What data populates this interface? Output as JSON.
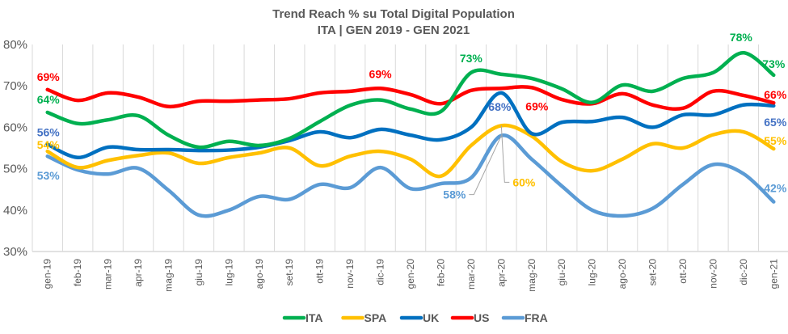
{
  "chart_data": {
    "type": "line",
    "title": "Trend Reach % su Total Digital Population",
    "subtitle": "ITA | GEN 2019 - GEN 2021",
    "xlabel": "",
    "ylabel": "",
    "ylim": [
      30,
      80
    ],
    "yticks": [
      30,
      40,
      50,
      60,
      70,
      80
    ],
    "ytick_labels": [
      "30%",
      "40%",
      "50%",
      "60%",
      "70%",
      "80%"
    ],
    "grid": "vertical",
    "smooth": true,
    "legend_position": "bottom",
    "categories": [
      "gen-19",
      "feb-19",
      "mar-19",
      "apr-19",
      "mag-19",
      "giu-19",
      "lug-19",
      "ago-19",
      "set-19",
      "ott-19",
      "nov-19",
      "dic-19",
      "gen-20",
      "feb-20",
      "mar-20",
      "apr-20",
      "mag-20",
      "giu-20",
      "lug-20",
      "ago-20",
      "set-20",
      "ott-20",
      "nov-20",
      "dic-20",
      "gen-21"
    ],
    "series": [
      {
        "name": "ITA",
        "color": "#00B050",
        "values": [
          63.6,
          60.9,
          61.8,
          62.8,
          58.1,
          55.2,
          56.6,
          55.6,
          57.3,
          61.4,
          65.3,
          66.6,
          64.4,
          63.8,
          73.2,
          72.8,
          71.8,
          69.3,
          66.0,
          70.2,
          68.7,
          71.8,
          73.2,
          78.0,
          72.6
        ]
      },
      {
        "name": "SPA",
        "color": "#FFC000",
        "values": [
          54.2,
          50.3,
          52.0,
          53.2,
          53.8,
          51.3,
          52.7,
          53.8,
          55.0,
          50.7,
          53.0,
          54.2,
          52.3,
          48.2,
          55.6,
          60.4,
          57.9,
          51.7,
          49.5,
          52.3,
          56.0,
          55.0,
          58.2,
          58.9,
          54.8
        ]
      },
      {
        "name": "UK",
        "color": "#0070C0",
        "values": [
          55.9,
          52.7,
          55.2,
          54.6,
          54.6,
          54.4,
          54.5,
          55.2,
          56.8,
          58.9,
          57.5,
          59.5,
          58.1,
          57.0,
          60.0,
          68.3,
          58.5,
          61.2,
          61.4,
          62.4,
          60.0,
          63.0,
          63.0,
          65.4,
          65.2
        ]
      },
      {
        "name": "US",
        "color": "#FF0000",
        "values": [
          69.1,
          66.5,
          68.3,
          67.3,
          65.0,
          66.3,
          66.3,
          66.6,
          66.9,
          68.3,
          68.7,
          69.4,
          67.9,
          65.7,
          68.9,
          69.4,
          69.6,
          66.7,
          65.7,
          68.1,
          65.4,
          64.6,
          68.7,
          67.7,
          65.9
        ]
      },
      {
        "name": "FRA",
        "color": "#5B9BD5",
        "values": [
          53.0,
          49.7,
          48.7,
          50.1,
          44.8,
          38.8,
          40.0,
          43.3,
          42.6,
          46.2,
          45.4,
          50.3,
          45.2,
          46.4,
          47.8,
          58.0,
          52.3,
          45.8,
          40.0,
          38.6,
          40.4,
          46.2,
          51.0,
          48.8,
          42.0
        ]
      }
    ],
    "annotations": [
      {
        "series": "US",
        "category": "gen-19",
        "text": "69%",
        "color": "#FF0000"
      },
      {
        "series": "ITA",
        "category": "gen-19",
        "text": "64%",
        "color": "#00B050"
      },
      {
        "series": "UK",
        "category": "gen-19",
        "text": "56%",
        "color": "#4472C4"
      },
      {
        "series": "SPA",
        "category": "gen-19",
        "text": "54%",
        "color": "#FFC000"
      },
      {
        "series": "FRA",
        "category": "gen-19",
        "text": "53%",
        "color": "#5B9BD5"
      },
      {
        "series": "US",
        "category": "dic-19",
        "text": "69%",
        "color": "#FF0000"
      },
      {
        "series": "ITA",
        "category": "mar-20",
        "text": "73%",
        "color": "#00B050"
      },
      {
        "series": "UK",
        "category": "apr-20",
        "text": "68%",
        "color": "#4472C4"
      },
      {
        "series": "US",
        "category": "apr-20",
        "text": "69%",
        "color": "#FF0000"
      },
      {
        "series": "FRA",
        "category": "apr-20",
        "text": "58%",
        "color": "#5B9BD5",
        "callout": true
      },
      {
        "series": "SPA",
        "category": "apr-20",
        "text": "60%",
        "color": "#FFC000",
        "callout": true
      },
      {
        "series": "ITA",
        "category": "dic-20",
        "text": "78%",
        "color": "#00B050"
      },
      {
        "series": "ITA",
        "category": "gen-21",
        "text": "73%",
        "color": "#00B050"
      },
      {
        "series": "US",
        "category": "gen-21",
        "text": "66%",
        "color": "#FF0000"
      },
      {
        "series": "UK",
        "category": "gen-21",
        "text": "65%",
        "color": "#4472C4"
      },
      {
        "series": "SPA",
        "category": "gen-21",
        "text": "55%",
        "color": "#FFC000"
      },
      {
        "series": "FRA",
        "category": "gen-21",
        "text": "42%",
        "color": "#5B9BD5"
      }
    ]
  }
}
